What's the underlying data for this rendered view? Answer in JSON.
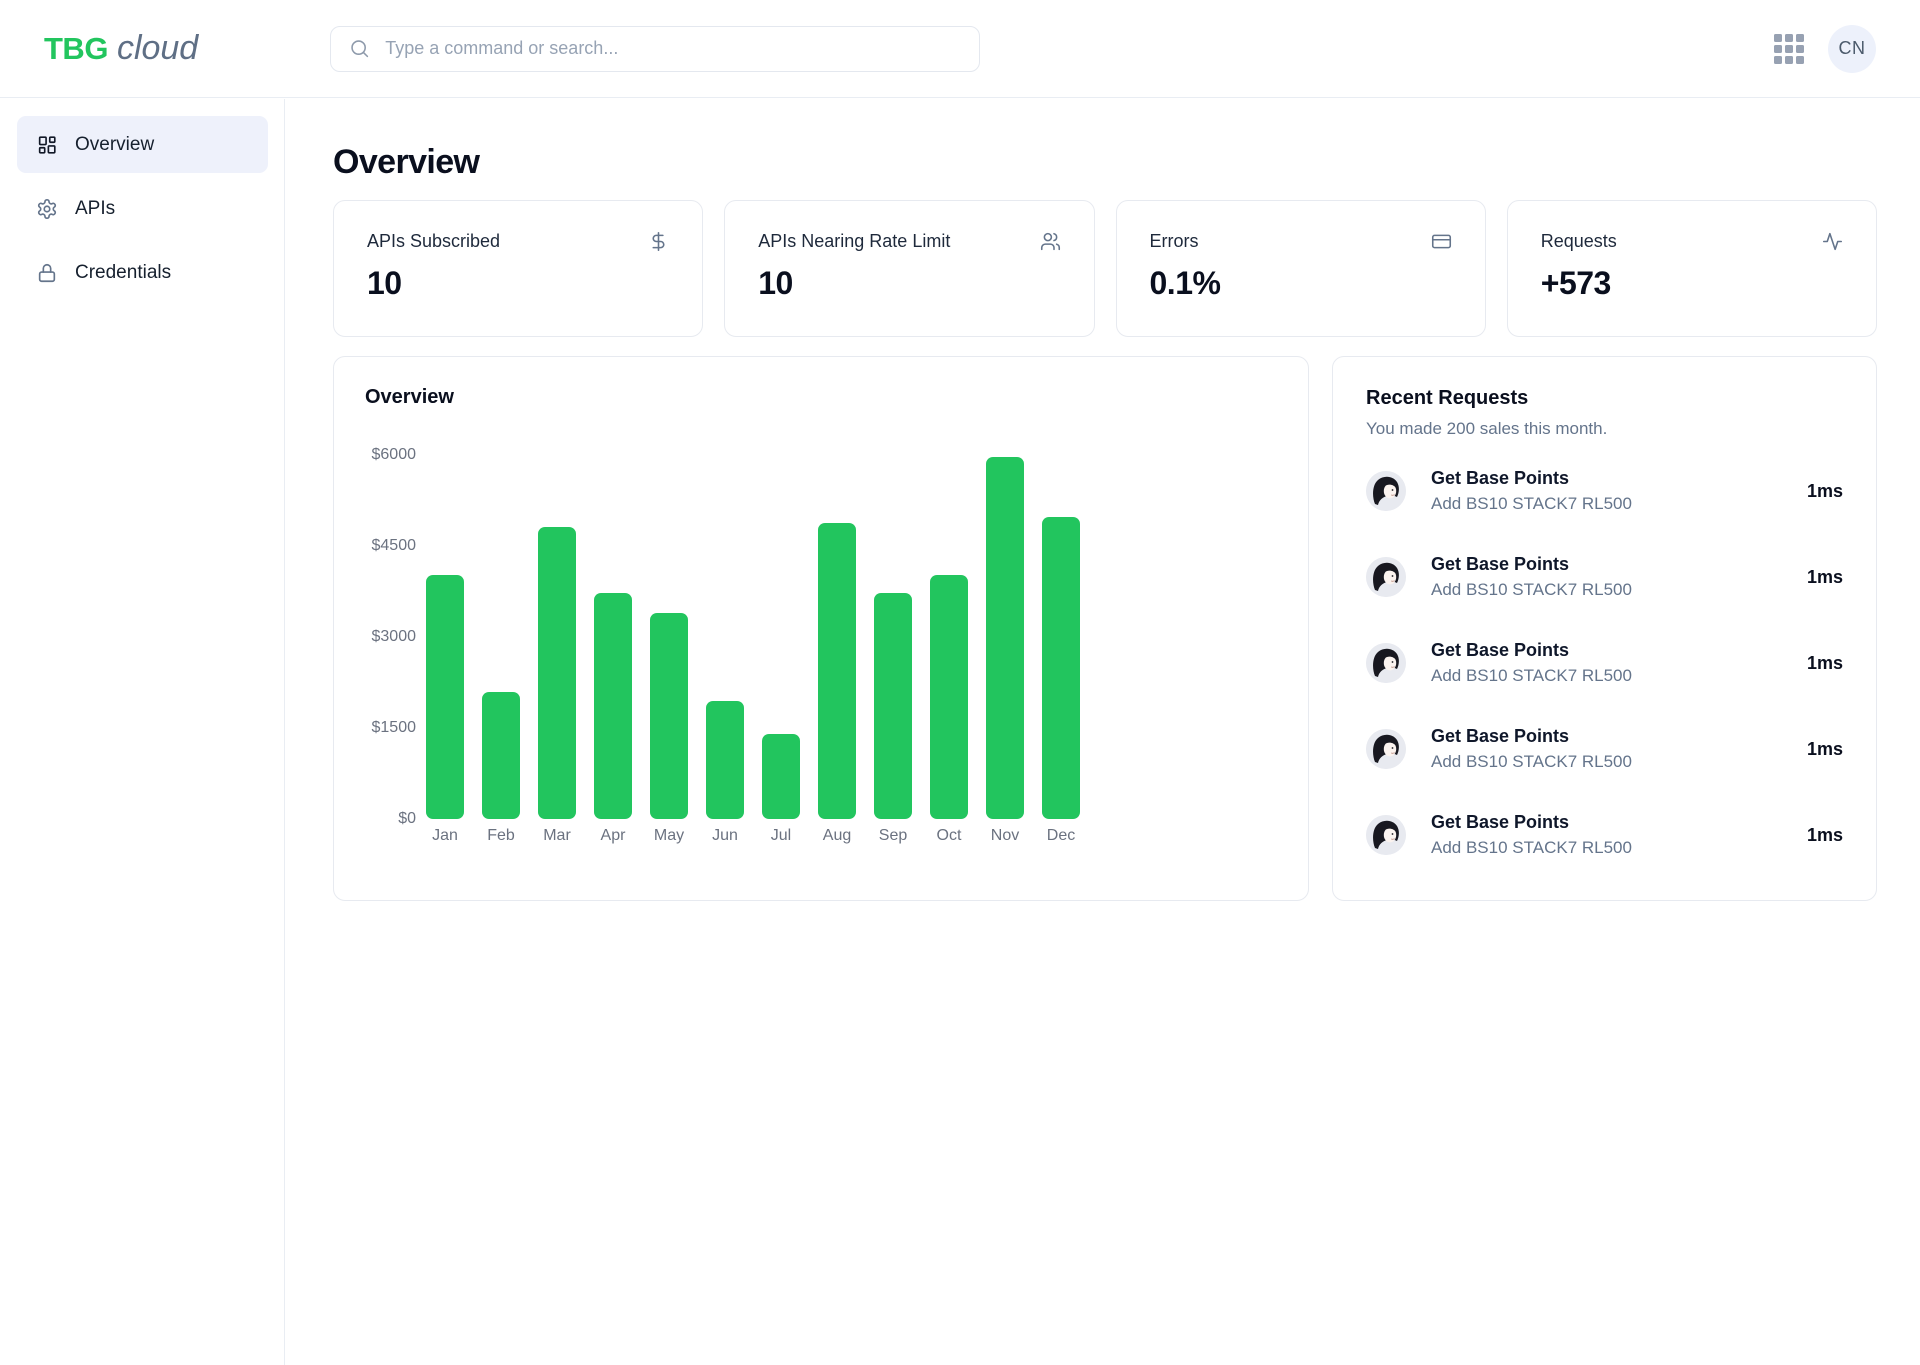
{
  "header": {
    "logo_bold": "TBG",
    "logo_light": "cloud",
    "search_placeholder": "Type a command or search...",
    "avatar_initials": "CN"
  },
  "sidebar": {
    "items": [
      {
        "label": "Overview",
        "icon": "dashboard-icon",
        "active": true
      },
      {
        "label": "APIs",
        "icon": "gear-icon",
        "active": false
      },
      {
        "label": "Credentials",
        "icon": "lock-icon",
        "active": false
      }
    ]
  },
  "page_title": "Overview",
  "stat_cards": [
    {
      "label": "APIs Subscribed",
      "value": "10",
      "icon": "dollar-icon"
    },
    {
      "label": "APIs Nearing Rate Limit",
      "value": "10",
      "icon": "users-icon"
    },
    {
      "label": "Errors",
      "value": "0.1%",
      "icon": "credit-card-icon"
    },
    {
      "label": "Requests",
      "value": "+573",
      "icon": "activity-icon"
    }
  ],
  "chart_card": {
    "title": "Overview"
  },
  "chart_data": {
    "type": "bar",
    "title": "Overview",
    "categories": [
      "Jan",
      "Feb",
      "Mar",
      "Apr",
      "May",
      "Jun",
      "Jul",
      "Aug",
      "Sep",
      "Oct",
      "Nov",
      "Dec"
    ],
    "values": [
      4030,
      2100,
      4810,
      3730,
      3390,
      1940,
      1400,
      4880,
      3730,
      4030,
      5970,
      4970
    ],
    "xlabel": "",
    "ylabel": "",
    "ylim": [
      0,
      6000
    ],
    "yticks": [
      6000,
      4500,
      3000,
      1500,
      0
    ],
    "ytick_prefix": "$",
    "bar_color": "#22c55e",
    "grid": false,
    "legend": false
  },
  "recent_requests": {
    "title": "Recent Requests",
    "subtitle": "You made 200 sales this month.",
    "items": [
      {
        "name": "Get Base Points",
        "description": "Add BS10 STACK7 RL500",
        "latency": "1ms"
      },
      {
        "name": "Get Base Points",
        "description": "Add BS10 STACK7 RL500",
        "latency": "1ms"
      },
      {
        "name": "Get Base Points",
        "description": "Add BS10 STACK7 RL500",
        "latency": "1ms"
      },
      {
        "name": "Get Base Points",
        "description": "Add BS10 STACK7 RL500",
        "latency": "1ms"
      },
      {
        "name": "Get Base Points",
        "description": "Add BS10 STACK7 RL500",
        "latency": "1ms"
      }
    ]
  },
  "colors": {
    "accent_green": "#22c55e",
    "active_item_bg": "#eef1fb",
    "muted_text": "#64748b",
    "card_border": "#e7eaf0",
    "avatar_bg": "#edf1fb"
  }
}
